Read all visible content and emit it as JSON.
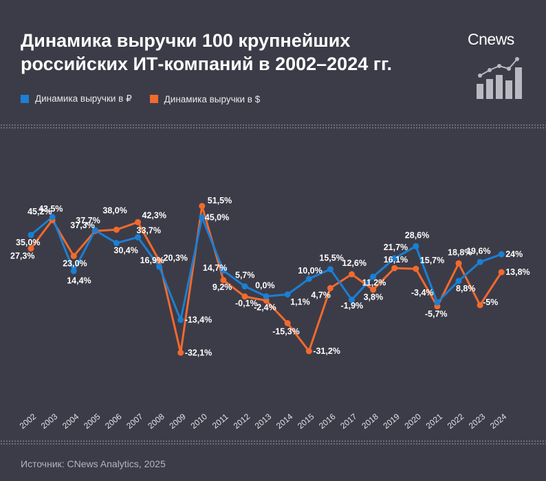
{
  "title": "Динамика выручки 100 крупнейших российских ИТ-компаний в 2002–2024 гг.",
  "brand": "Cnews",
  "source": "Источник: CNews Analytics, 2025",
  "colors": {
    "rub": "#1b7fd3",
    "usd": "#f26a2d",
    "background": "#3c3c48"
  },
  "chart_data": {
    "type": "line",
    "title": "Динамика выручки 100 крупнейших российских ИТ-компаний в 2002–2024 гг.",
    "categories": [
      "2002",
      "2003",
      "2004",
      "2005",
      "2006",
      "2007",
      "2008",
      "2009",
      "2010",
      "2011",
      "2012",
      "2013",
      "2014",
      "2015",
      "2016",
      "2017",
      "2018",
      "2019",
      "2020",
      "2021",
      "2022",
      "2023",
      "2024"
    ],
    "series": [
      {
        "name": "Динамика выручки в ₽",
        "color": "#1b7fd3",
        "values": [
          35.0,
          45.2,
          14.4,
          37.7,
          30.4,
          33.7,
          16.9,
          -13.4,
          45.0,
          14.7,
          5.7,
          0.0,
          1.1,
          10.0,
          15.5,
          -1.9,
          11.2,
          21.7,
          28.6,
          -3.4,
          8.8,
          19.6,
          24
        ],
        "labels": [
          "35,0%",
          "45,2%",
          "14,4%",
          "37,7%",
          "30,4%",
          "33,7%",
          "16,9%",
          "-13,4%",
          "45,0%",
          "14,7%",
          "5,7%",
          "0,0%",
          "1,1%",
          "10,0%",
          "15,5%",
          "-1,9%",
          "11,2%",
          "21,7%",
          "28,6%",
          "-3,4%",
          "8,8%",
          "19,6%",
          "24%"
        ]
      },
      {
        "name": "Динамика выручки в $",
        "color": "#f26a2d",
        "values": [
          27.3,
          43.5,
          23.0,
          37.3,
          38.0,
          42.3,
          20.3,
          -32.1,
          51.5,
          9.2,
          -0.1,
          -2.4,
          -15.3,
          -31.2,
          4.7,
          12.6,
          3.8,
          16.1,
          15.7,
          -5.7,
          18.8,
          -5,
          13.8
        ],
        "labels": [
          "27,3%",
          "43,5%",
          "23,0%",
          "37,3%",
          "38,0%",
          "42,3%",
          "20,3%",
          "-32,1%",
          "51,5%",
          "9,2%",
          "-0,1%",
          "-2,4%",
          "-15,3%",
          "-31,2%",
          "4,7%",
          "12,6%",
          "3,8%",
          "16,1%",
          "15,7%",
          "-5,7%",
          "18,8%",
          "-5%",
          "13,8%"
        ]
      }
    ],
    "grid": false,
    "legend": "top-left"
  }
}
